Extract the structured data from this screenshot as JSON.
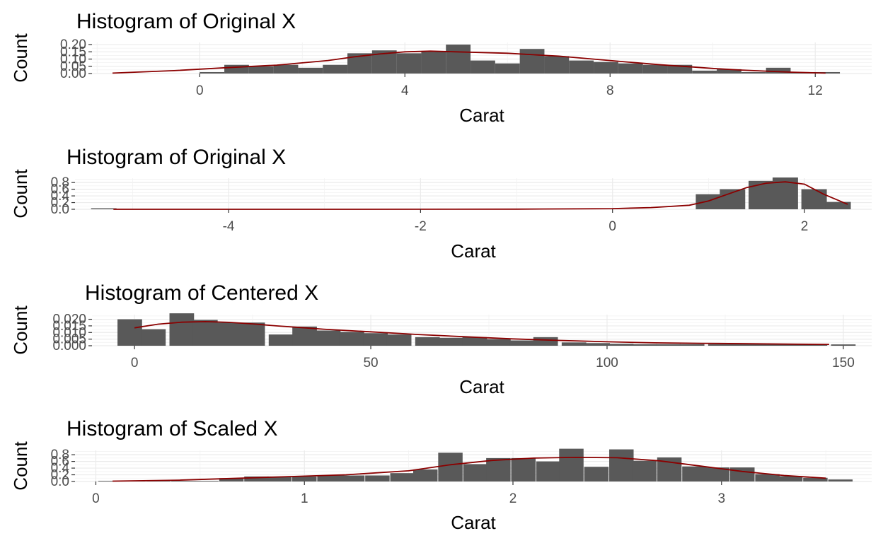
{
  "chart_data": [
    {
      "type": "bar",
      "title": "Histogram of Original X",
      "xlabel": "Carat",
      "ylabel": "Count",
      "xlim": [
        -2.1,
        13.1
      ],
      "ylim": [
        0,
        0.215
      ],
      "x_ticks": [
        0,
        4,
        8,
        12
      ],
      "y_ticks": [
        "0.00",
        "0.05",
        "0.10",
        "0.15",
        "0.20"
      ],
      "bar_width": 0.48,
      "bars": {
        "x": [
          0.24,
          0.72,
          1.2,
          1.68,
          2.16,
          2.64,
          3.12,
          3.6,
          4.08,
          4.56,
          5.04,
          5.52,
          6.0,
          6.48,
          6.96,
          7.44,
          7.92,
          8.4,
          8.88,
          9.36,
          9.84,
          10.32,
          10.8,
          11.28,
          11.76,
          12.24
        ],
        "values": [
          0.01,
          0.06,
          0.05,
          0.06,
          0.04,
          0.06,
          0.14,
          0.16,
          0.14,
          0.15,
          0.2,
          0.09,
          0.07,
          0.17,
          0.12,
          0.09,
          0.08,
          0.07,
          0.06,
          0.06,
          0.02,
          0.03,
          0.01,
          0.04,
          0.01,
          0.01
        ]
      },
      "density": {
        "x": [
          -1.7,
          -0.5,
          0.5,
          1.5,
          2.5,
          3.0,
          3.5,
          4.0,
          4.5,
          5.0,
          5.5,
          6.0,
          6.5,
          7.0,
          7.5,
          8.0,
          8.5,
          9.0,
          9.5,
          10.0,
          10.5,
          11.0,
          11.5,
          12.2
        ],
        "values": [
          0.003,
          0.02,
          0.04,
          0.058,
          0.09,
          0.115,
          0.135,
          0.15,
          0.155,
          0.15,
          0.145,
          0.14,
          0.13,
          0.12,
          0.105,
          0.09,
          0.075,
          0.06,
          0.048,
          0.035,
          0.025,
          0.017,
          0.01,
          0.003
        ]
      }
    },
    {
      "type": "bar",
      "title": "Histogram of Original X",
      "xlabel": "Carat",
      "ylabel": "Count",
      "xlim": [
        -5.6,
        2.7
      ],
      "ylim": [
        0,
        0.93
      ],
      "x_ticks": [
        -4,
        -2,
        0,
        2
      ],
      "y_ticks": [
        "0.0",
        "0.2",
        "0.4",
        "0.6",
        "0.8"
      ],
      "bar_width": 0.265,
      "bars": {
        "x": [
          -5.3,
          1.0,
          1.25,
          1.55,
          1.8,
          2.1,
          2.35
        ],
        "values": [
          0.03,
          0.45,
          0.6,
          0.85,
          0.95,
          0.6,
          0.22
        ]
      },
      "density": {
        "x": [
          -5.2,
          -3.0,
          -1.0,
          0.0,
          0.4,
          0.8,
          1.0,
          1.2,
          1.4,
          1.6,
          1.8,
          2.0,
          2.2,
          2.45
        ],
        "values": [
          0.0,
          0.0,
          0.005,
          0.02,
          0.05,
          0.12,
          0.25,
          0.45,
          0.65,
          0.78,
          0.82,
          0.75,
          0.45,
          0.15
        ]
      }
    },
    {
      "type": "bar",
      "title": "Histogram of Centered X",
      "xlabel": "Carat",
      "ylabel": "Count",
      "xlim": [
        -9,
        156
      ],
      "ylim": [
        0,
        0.0235
      ],
      "x_ticks": [
        0,
        50,
        100,
        150
      ],
      "y_ticks": [
        "0.000",
        "0.005",
        "0.010",
        "0.015",
        "0.020"
      ],
      "bar_width": 5.2,
      "bars": {
        "x": [
          -1,
          4,
          10,
          15,
          20,
          25,
          31,
          36,
          41,
          46,
          51,
          56,
          62,
          67,
          72,
          77,
          82,
          87,
          93,
          98,
          103,
          108,
          113,
          118,
          124,
          129,
          134,
          139,
          144,
          150
        ],
        "values": [
          0.02,
          0.0125,
          0.0245,
          0.0195,
          0.0175,
          0.0175,
          0.0085,
          0.0145,
          0.0115,
          0.0105,
          0.0095,
          0.0085,
          0.0065,
          0.006,
          0.0065,
          0.005,
          0.004,
          0.0065,
          0.0025,
          0.002,
          0.0015,
          0.0012,
          0.0012,
          0.0012,
          0.0012,
          0.0012,
          0.0012,
          0.0012,
          0.0012,
          0.001
        ]
      },
      "density": {
        "x": [
          0,
          5,
          10,
          15,
          20,
          25,
          30,
          35,
          40,
          50,
          60,
          70,
          80,
          90,
          100,
          110,
          120,
          130,
          140,
          147
        ],
        "values": [
          0.0135,
          0.0163,
          0.0178,
          0.0182,
          0.0177,
          0.0165,
          0.015,
          0.0138,
          0.0125,
          0.0105,
          0.0085,
          0.0068,
          0.0052,
          0.004,
          0.003,
          0.0022,
          0.0018,
          0.0015,
          0.0012,
          0.001
        ]
      }
    },
    {
      "type": "bar",
      "title": "Histogram of Scaled X",
      "xlabel": "Carat",
      "ylabel": "Count",
      "xlim": [
        -0.1,
        3.72
      ],
      "ylim": [
        0,
        0.93
      ],
      "x_ticks": [
        0,
        1,
        2,
        3
      ],
      "y_ticks": [
        "0.0",
        "0.2",
        "0.4",
        "0.6",
        "0.8"
      ],
      "bar_width": 0.117,
      "bars": {
        "x": [
          0.07,
          0.18,
          0.3,
          0.42,
          0.53,
          0.65,
          0.77,
          0.88,
          1.0,
          1.12,
          1.23,
          1.35,
          1.47,
          1.58,
          1.7,
          1.82,
          1.93,
          2.05,
          2.17,
          2.28,
          2.4,
          2.52,
          2.63,
          2.75,
          2.87,
          2.98,
          3.1,
          3.22,
          3.33,
          3.45,
          3.57
        ],
        "values": [
          0.02,
          0.02,
          0.02,
          0.02,
          0.02,
          0.1,
          0.15,
          0.15,
          0.15,
          0.18,
          0.18,
          0.18,
          0.25,
          0.36,
          0.86,
          0.52,
          0.7,
          0.7,
          0.6,
          0.98,
          0.44,
          0.96,
          0.62,
          0.72,
          0.45,
          0.42,
          0.42,
          0.22,
          0.16,
          0.11,
          0.06
        ]
      },
      "density": {
        "x": [
          0.08,
          0.4,
          0.8,
          1.2,
          1.5,
          1.7,
          1.9,
          2.1,
          2.3,
          2.5,
          2.7,
          2.9,
          3.1,
          3.3,
          3.5
        ],
        "values": [
          0.01,
          0.04,
          0.12,
          0.2,
          0.32,
          0.5,
          0.63,
          0.7,
          0.72,
          0.71,
          0.62,
          0.46,
          0.3,
          0.18,
          0.1
        ]
      }
    }
  ],
  "colors": {
    "bar_fill": "#595959",
    "density_line": "#8b0000",
    "grid_major": "#ebebeb",
    "grid_minor": "#f2f2f2",
    "tick_text": "#4d4d4d"
  }
}
